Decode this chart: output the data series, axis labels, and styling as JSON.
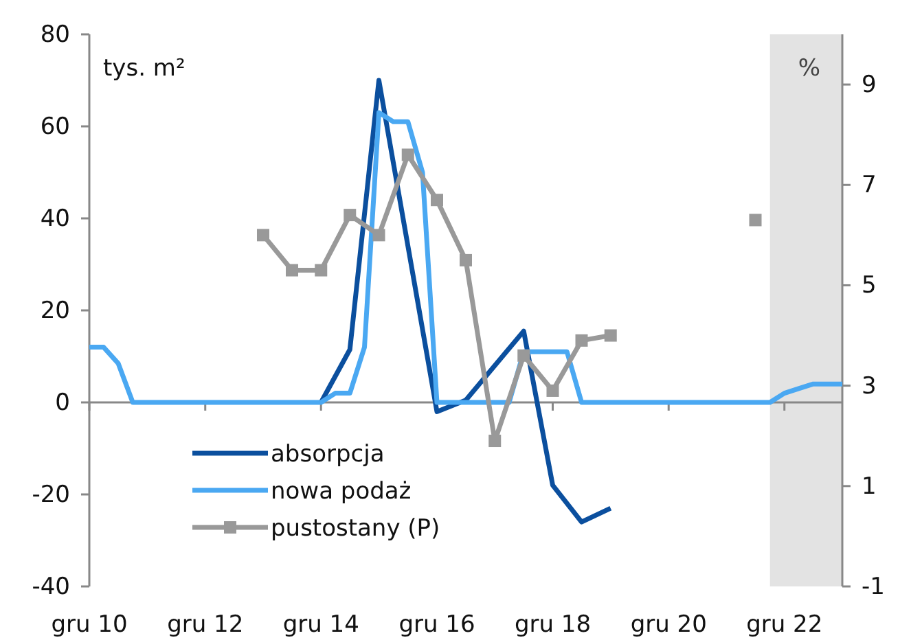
{
  "chart_data": {
    "type": "line",
    "ylabel": "tys. m²",
    "y2label": "%",
    "xlim": [
      "2010-12",
      "2023-12"
    ],
    "xticks": [
      {
        "value": "2010-12",
        "label": "gru 10"
      },
      {
        "value": "2012-12",
        "label": "gru 12"
      },
      {
        "value": "2014-12",
        "label": "gru 14"
      },
      {
        "value": "2016-12",
        "label": "gru 16"
      },
      {
        "value": "2018-12",
        "label": "gru 18"
      },
      {
        "value": "2020-12",
        "label": "gru 20"
      },
      {
        "value": "2022-12",
        "label": "gru 22"
      }
    ],
    "ylim": [
      -40,
      80
    ],
    "yticks": [
      -40,
      -20,
      0,
      20,
      40,
      60,
      80
    ],
    "y2lim": [
      -1,
      10
    ],
    "y2ticks": [
      -1,
      1,
      3,
      5,
      7,
      9
    ],
    "bands": [
      {
        "axis": "x",
        "from": "2022-09",
        "to": "2023-12",
        "color": "#e3e3e3"
      }
    ],
    "legend": "bottom left",
    "series": [
      {
        "name": "absorpcja",
        "color": "#0b4f9e",
        "marker": "none",
        "x": [
          "2014-12",
          "2015-06",
          "2015-12",
          "2016-12",
          "2017-06",
          "2018-06",
          "2018-12",
          "2019-06",
          "2019-12"
        ],
        "values": [
          0,
          11.5,
          70,
          -2,
          0.5,
          15.5,
          -18,
          -26,
          -23
        ]
      },
      {
        "name": "nowa podaż",
        "color": "#4aa8f2",
        "marker": "none",
        "x": [
          "2010-12",
          "2011-03",
          "2011-06",
          "2011-09",
          "2014-12",
          "2015-03",
          "2015-06",
          "2015-09",
          "2015-12",
          "2016-03",
          "2016-06",
          "2016-09",
          "2016-12",
          "2018-03",
          "2018-06",
          "2019-03",
          "2019-06",
          "2022-09",
          "2022-12",
          "2023-03",
          "2023-06",
          "2023-09",
          "2023-12"
        ],
        "values": [
          12,
          12,
          8.5,
          0,
          0,
          2,
          2,
          12,
          63,
          61,
          61,
          50,
          0,
          0,
          11,
          11,
          0,
          0,
          2,
          3,
          4,
          4,
          4
        ]
      },
      {
        "name": "pustostany (P)",
        "color": "#999999",
        "marker": "square",
        "axis": "y2",
        "x": [
          "2013-12",
          "2014-06",
          "2014-12",
          "2015-06",
          "2015-12",
          "2016-06",
          "2016-12",
          "2017-06",
          "2017-12",
          "2018-06",
          "2018-12",
          "2019-06",
          "2019-12",
          "2021-06",
          "2022-06"
        ],
        "values": [
          6.0,
          5.3,
          5.3,
          6.4,
          6.0,
          7.6,
          6.7,
          5.5,
          1.9,
          3.6,
          2.9,
          3.9,
          4.0,
          null,
          6.3
        ]
      }
    ]
  }
}
